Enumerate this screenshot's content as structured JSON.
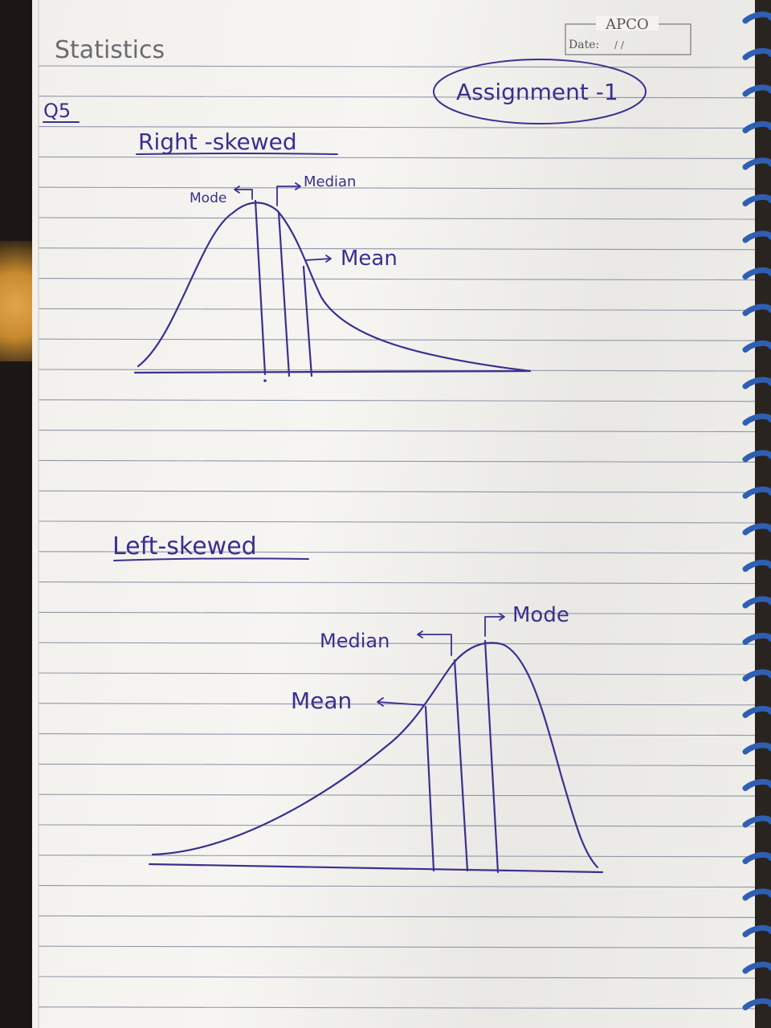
{
  "header": {
    "brand": "APCO",
    "date_label": "Date:",
    "date_value": "/   /"
  },
  "page": {
    "subject": "Statistics",
    "assignment": "Assignment -1",
    "question": "Q5"
  },
  "right_skewed": {
    "heading": "Right -skewed",
    "labels": {
      "mode": "Mode",
      "median": "Median",
      "mean": "Mean"
    }
  },
  "left_skewed": {
    "heading": "Left-skewed",
    "labels": {
      "mode": "Mode",
      "median": "Median",
      "mean": "Mean"
    }
  },
  "colors": {
    "ink": "#3b2f8f",
    "pencil": "#6b6b72",
    "ruled_line": "#8f96a8",
    "spiral": "#2f5fb3"
  }
}
